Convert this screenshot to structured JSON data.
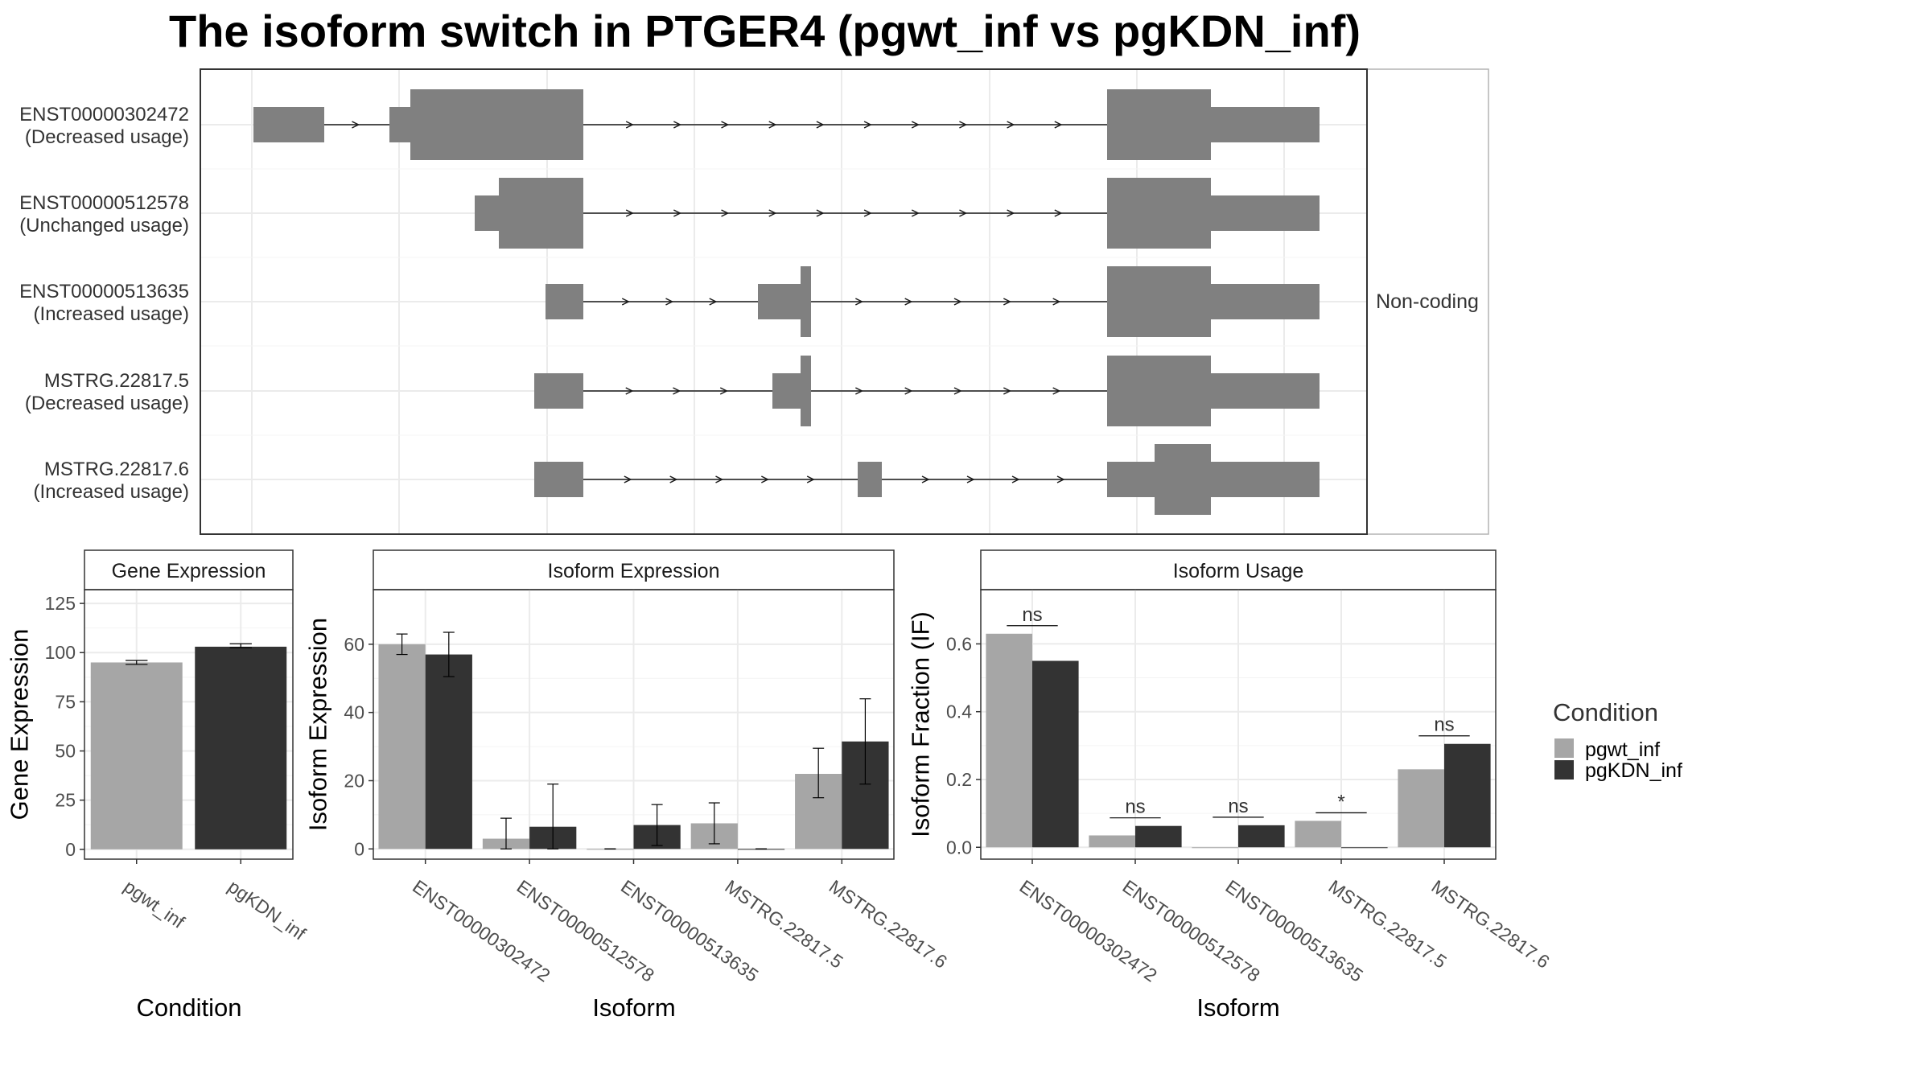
{
  "title": "The isoform switch in PTGER4 (pgwt_inf vs pgKDN_inf)",
  "colors": {
    "pgwt_inf": "#a6a6a6",
    "pgKDN_inf": "#333333",
    "exon": "#808080",
    "grid": "#ebebeb",
    "panel_border": "#333333",
    "strip_fill": "#ffffff"
  },
  "legend": {
    "title": "Condition",
    "items": [
      "pgwt_inf",
      "pgKDN_inf"
    ]
  },
  "structure_panel": {
    "facet_label": "Non-coding",
    "isoforms": [
      {
        "id": "ENST00000302472",
        "usage": "(Decreased usage)"
      },
      {
        "id": "ENST00000512578",
        "usage": "(Unchanged usage)"
      },
      {
        "id": "ENST00000513635",
        "usage": "(Increased usage)"
      },
      {
        "id": "MSTRG.22817.5",
        "usage": "(Decreased usage)"
      },
      {
        "id": "MSTRG.22817.6",
        "usage": "(Increased usage)"
      }
    ]
  },
  "chart_data": [
    {
      "type": "bar",
      "title": "Gene Expression",
      "xlabel": "Condition",
      "ylabel": "Gene Expression",
      "categories": [
        "pgwt_inf",
        "pgKDN_inf"
      ],
      "values": [
        95,
        103
      ],
      "errors": [
        [
          94,
          96
        ],
        [
          102.5,
          104.5
        ]
      ],
      "ylim": [
        -5,
        132
      ],
      "yticks": [
        0,
        25,
        50,
        75,
        100,
        125
      ]
    },
    {
      "type": "bar",
      "title": "Isoform Expression",
      "xlabel": "Isoform",
      "ylabel": "Isoform Expression",
      "categories": [
        "ENST00000302472",
        "ENST00000512578",
        "ENST00000513635",
        "MSTRG.22817.5",
        "MSTRG.22817.6"
      ],
      "series": [
        {
          "name": "pgwt_inf",
          "values": [
            60,
            3,
            0,
            7.5,
            22
          ],
          "errors": [
            [
              57,
              63
            ],
            [
              0,
              9
            ],
            [
              0,
              0
            ],
            [
              1.5,
              13.5
            ],
            [
              15,
              29.5
            ]
          ]
        },
        {
          "name": "pgKDN_inf",
          "values": [
            57,
            6.5,
            7,
            0,
            31.5
          ],
          "errors": [
            [
              50.5,
              63.5
            ],
            [
              0,
              19
            ],
            [
              1,
              13
            ],
            [
              0,
              0
            ],
            [
              19,
              44
            ]
          ]
        }
      ],
      "ylim": [
        -3,
        76
      ],
      "yticks": [
        0,
        20,
        40,
        60
      ]
    },
    {
      "type": "bar",
      "title": "Isoform Usage",
      "xlabel": "Isoform",
      "ylabel": "Isoform Fraction (IF)",
      "categories": [
        "ENST00000302472",
        "ENST00000512578",
        "ENST00000513635",
        "MSTRG.22817.5",
        "MSTRG.22817.6"
      ],
      "series": [
        {
          "name": "pgwt_inf",
          "values": [
            0.63,
            0.035,
            0,
            0.078,
            0.23
          ]
        },
        {
          "name": "pgKDN_inf",
          "values": [
            0.55,
            0.063,
            0.065,
            0,
            0.305
          ]
        }
      ],
      "significance": [
        "ns",
        "ns",
        "ns",
        "*",
        "ns"
      ],
      "ylim": [
        -0.035,
        0.76
      ],
      "yticks": [
        0.0,
        0.2,
        0.4,
        0.6
      ],
      "ytick_labels": [
        "0.0",
        "0.2",
        "0.4",
        "0.6"
      ]
    }
  ]
}
